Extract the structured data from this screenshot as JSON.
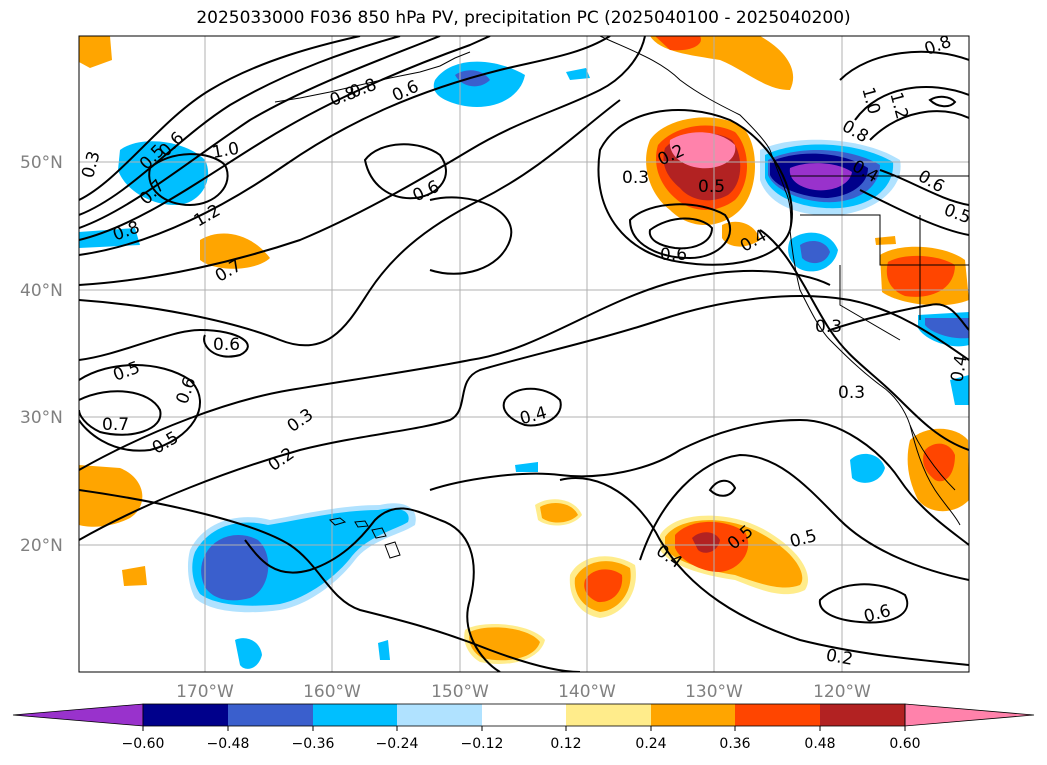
{
  "title": "2025033000 F036 850 hPa PV, precipitation PC (2025040100 - 2025040200)",
  "axes": {
    "lon_ticks": [
      "170°W",
      "160°W",
      "150°W",
      "140°W",
      "130°W",
      "120°W"
    ],
    "lat_ticks": [
      "50°N",
      "40°N",
      "30°N",
      "20°N"
    ],
    "grid": true,
    "tick_color": "#808080"
  },
  "colorbar": {
    "orientation": "horizontal",
    "extend": "both",
    "tick_labels": [
      "−0.60",
      "−0.48",
      "−0.36",
      "−0.24",
      "−0.12",
      "0.12",
      "0.24",
      "0.36",
      "0.48",
      "0.60"
    ],
    "colors": [
      "#9932cc",
      "#00008b",
      "#3a5fcd",
      "#00bfff",
      "#b0e2ff",
      "#ffffff",
      "#ffec8b",
      "#ffa500",
      "#ff4500",
      "#b22222",
      "#ff82ab"
    ]
  },
  "contour_labels": [
    "0.3",
    "0.5",
    "0.6",
    "0.7",
    "0.8",
    "1.0",
    "1.2",
    "0.8",
    "0.6",
    "0.8",
    "0.6",
    "0.7",
    "0.6",
    "0.5",
    "0.6",
    "0.7",
    "0.5",
    "0.3",
    "0.2",
    "0.4",
    "0.2",
    "0.3",
    "0.5",
    "0.6",
    "0.4",
    "0.3",
    "0.3",
    "0.4",
    "0.8",
    "1.0",
    "1.2",
    "0.8",
    "0.4",
    "0.6",
    "0.5",
    "0.4",
    "0.5",
    "0.5",
    "0.6",
    "0.2"
  ]
}
